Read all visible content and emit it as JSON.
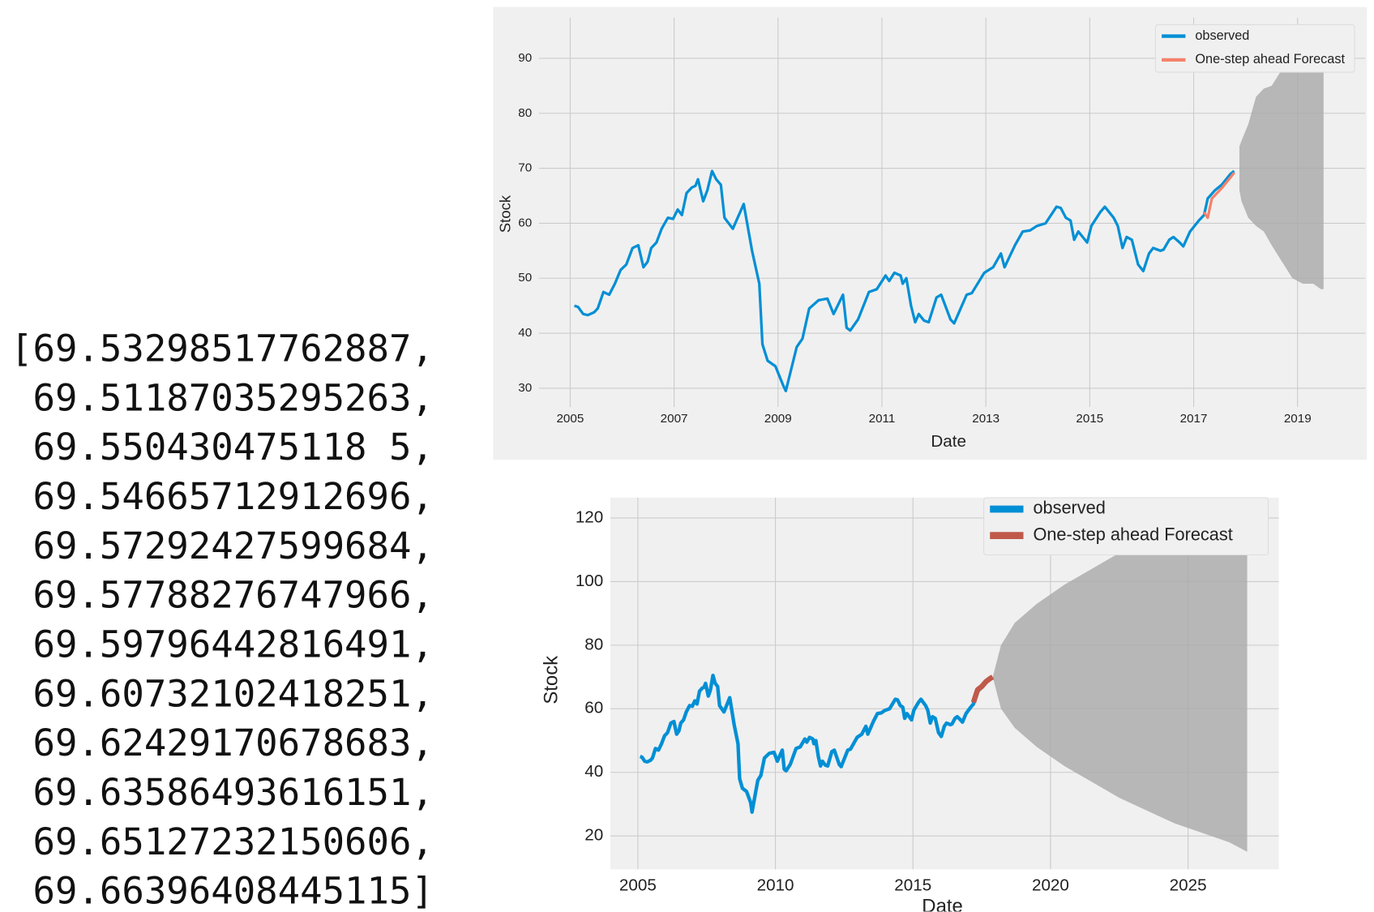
{
  "output_list": {
    "lines": [
      "[69.53298517762887,",
      " 69.51187035295263,",
      " 69.550430475118 5,",
      " 69.54665712912696,",
      " 69.57292427599684,",
      " 69.57788276747966,",
      " 69.59796442816491,",
      " 69.60732102418251,",
      " 69.62429170678683,",
      " 69.63586493616151,",
      " 69.65127232150606,",
      " 69.66396408445115]"
    ]
  },
  "chart_data": [
    {
      "type": "line",
      "x_label": "Date",
      "y_label": "Stock",
      "grid": true,
      "legend": "upper right",
      "xlim": [
        2004.4,
        2020.3
      ],
      "ylim": [
        26.6,
        97.4
      ],
      "xticks": [
        2005,
        2007,
        2009,
        2011,
        2013,
        2015,
        2017,
        2019
      ],
      "yticks": [
        30,
        40,
        50,
        60,
        70,
        80,
        90
      ],
      "series": [
        {
          "name": "observed",
          "color": "#008fd5",
          "x": [
            2005.08,
            2005.15,
            2005.25,
            2005.34,
            2005.46,
            2005.53,
            2005.64,
            2005.75,
            2005.86,
            2005.97,
            2006.08,
            2006.2,
            2006.31,
            2006.41,
            2006.49,
            2006.56,
            2006.66,
            2006.76,
            2006.88,
            2006.98,
            2007.07,
            2007.15,
            2007.24,
            2007.34,
            2007.41,
            2007.46,
            2007.56,
            2007.64,
            2007.73,
            2007.81,
            2007.9,
            2007.97,
            2008.13,
            2008.34,
            2008.5,
            2008.64,
            2008.7,
            2008.8,
            2008.95,
            2009.1,
            2009.15,
            2009.36,
            2009.47,
            2009.6,
            2009.78,
            2009.95,
            2010.07,
            2010.25,
            2010.32,
            2010.39,
            2010.54,
            2010.75,
            2010.9,
            2011.07,
            2011.14,
            2011.24,
            2011.36,
            2011.4,
            2011.47,
            2011.56,
            2011.64,
            2011.71,
            2011.81,
            2011.9,
            2012.05,
            2012.14,
            2012.32,
            2012.39,
            2012.63,
            2012.73,
            2012.97,
            2013.14,
            2013.29,
            2013.36,
            2013.56,
            2013.71,
            2013.85,
            2013.98,
            2014.15,
            2014.36,
            2014.44,
            2014.54,
            2014.63,
            2014.7,
            2014.78,
            2014.95,
            2015.03,
            2015.2,
            2015.29,
            2015.46,
            2015.54,
            2015.63,
            2015.71,
            2015.81,
            2015.93,
            2016.03,
            2016.14,
            2016.22,
            2016.36,
            2016.42,
            2016.53,
            2016.61,
            2016.73,
            2016.8,
            2016.93,
            2017.1,
            2017.2,
            2017.27,
            2017.41,
            2017.54,
            2017.71,
            2017.78
          ],
          "values": [
            45,
            44.8,
            43.5,
            43.3,
            43.8,
            44.5,
            47.5,
            47,
            49,
            51.5,
            52.5,
            55.5,
            56,
            52,
            53,
            55.5,
            56.5,
            59,
            61,
            60.8,
            62.5,
            61.5,
            65.5,
            66.5,
            66.8,
            68,
            64,
            66,
            69.5,
            68,
            67,
            61,
            59,
            63.5,
            55,
            49,
            38,
            35,
            34,
            30.5,
            29.5,
            37.5,
            39,
            44.5,
            46,
            46.3,
            43.5,
            47,
            41,
            40.5,
            42.5,
            47.5,
            48,
            50.5,
            49.5,
            51,
            50.5,
            49,
            50,
            45,
            42,
            43.5,
            42.3,
            42,
            46.5,
            47,
            42.5,
            41.8,
            47,
            47.3,
            51,
            52,
            54.5,
            52,
            56,
            58.5,
            58.7,
            59.5,
            60,
            63,
            62.8,
            61,
            60.5,
            57,
            58.5,
            56.5,
            59.5,
            62,
            63,
            61,
            59.5,
            55.5,
            57.5,
            57,
            52.5,
            51.3,
            54.5,
            55.5,
            55,
            55.2,
            57,
            57.5,
            56.5,
            55.8,
            58.5,
            60.5,
            61.5,
            64.5,
            66,
            67,
            69,
            69.5
          ]
        },
        {
          "name": "One-step ahead Forecast",
          "color": "#f4826b",
          "x": [
            2017.2,
            2017.27,
            2017.35,
            2017.45,
            2017.55,
            2017.68,
            2017.78
          ],
          "values": [
            62,
            61,
            64.5,
            65.5,
            66.5,
            68,
            69.2
          ]
        }
      ],
      "confidence_interval": {
        "color": "#a9a9a9",
        "x": [
          2017.88,
          2017.92,
          2018.05,
          2018.2,
          2018.35,
          2018.5,
          2018.7,
          2018.9,
          2019.1,
          2019.3,
          2019.45,
          2019.5
        ],
        "upper": [
          74,
          75,
          78,
          83,
          84.5,
          85,
          88,
          89,
          92,
          94.5,
          94.5,
          94.5
        ],
        "lower": [
          66,
          64,
          61,
          59.5,
          58.5,
          56,
          53,
          50,
          49,
          49,
          48,
          48
        ]
      }
    },
    {
      "type": "line",
      "x_label": "Date",
      "y_label": "Stock",
      "grid": true,
      "legend": "upper right",
      "xlim": [
        2004.0,
        2028.3
      ],
      "ylim": [
        9.5,
        126.4
      ],
      "xticks": [
        2005,
        2010,
        2015,
        2020,
        2025
      ],
      "yticks": [
        20,
        40,
        60,
        80,
        100,
        120
      ],
      "series": [
        {
          "name": "observed",
          "color": "#008fd5",
          "x": [
            2005.08,
            2005.15,
            2005.25,
            2005.34,
            2005.46,
            2005.53,
            2005.64,
            2005.75,
            2005.86,
            2005.97,
            2006.08,
            2006.2,
            2006.31,
            2006.41,
            2006.49,
            2006.56,
            2006.66,
            2006.76,
            2006.88,
            2006.98,
            2007.07,
            2007.15,
            2007.24,
            2007.34,
            2007.41,
            2007.46,
            2007.56,
            2007.64,
            2007.73,
            2007.81,
            2007.9,
            2007.97,
            2008.13,
            2008.34,
            2008.5,
            2008.64,
            2008.7,
            2008.8,
            2008.95,
            2009.1,
            2009.15,
            2009.36,
            2009.47,
            2009.6,
            2009.78,
            2009.95,
            2010.07,
            2010.25,
            2010.32,
            2010.39,
            2010.54,
            2010.75,
            2010.9,
            2011.07,
            2011.14,
            2011.24,
            2011.36,
            2011.4,
            2011.47,
            2011.56,
            2011.64,
            2011.71,
            2011.81,
            2011.9,
            2012.05,
            2012.14,
            2012.32,
            2012.39,
            2012.63,
            2012.73,
            2012.97,
            2013.14,
            2013.29,
            2013.36,
            2013.56,
            2013.71,
            2013.85,
            2013.98,
            2014.15,
            2014.36,
            2014.44,
            2014.54,
            2014.63,
            2014.7,
            2014.78,
            2014.95,
            2015.03,
            2015.2,
            2015.29,
            2015.46,
            2015.54,
            2015.63,
            2015.71,
            2015.81,
            2015.93,
            2016.03,
            2016.14,
            2016.22,
            2016.36,
            2016.42,
            2016.53,
            2016.61,
            2016.73,
            2016.8,
            2016.93,
            2017.1,
            2017.2,
            2017.27,
            2017.41,
            2017.54,
            2017.71,
            2017.78
          ],
          "values": [
            45,
            44.8,
            43.5,
            43.3,
            43.8,
            44.5,
            47.5,
            47,
            49,
            51.5,
            52.5,
            55.5,
            56,
            52,
            53,
            55.5,
            56.5,
            59,
            61,
            60.8,
            62.5,
            61.5,
            65.5,
            66.5,
            66.8,
            68,
            64,
            66,
            70.5,
            68,
            67,
            61,
            59,
            63.5,
            55,
            49,
            38,
            35,
            34,
            30.5,
            27.5,
            37.5,
            39,
            44.5,
            46,
            46.3,
            43.5,
            47,
            41,
            40.5,
            42.5,
            47.5,
            48,
            50.5,
            49.5,
            51,
            50.5,
            49,
            50,
            45,
            42,
            43.5,
            42.3,
            42,
            46.5,
            47,
            42.5,
            41.8,
            47,
            47.3,
            51,
            52,
            54.5,
            52,
            56,
            58.5,
            58.7,
            59.5,
            60,
            63,
            62.8,
            61,
            60.5,
            57,
            58.5,
            56.5,
            59.5,
            62,
            63,
            61,
            59.5,
            55.5,
            57.5,
            57,
            52.5,
            51.3,
            54.5,
            55.5,
            55,
            55.2,
            57,
            57.5,
            56.5,
            55.8,
            58.5,
            60.5,
            61.5,
            64.5,
            66,
            67,
            69,
            69.5
          ]
        },
        {
          "name": "One-step ahead Forecast",
          "color": "#c0594a",
          "x": [
            2017.2,
            2017.35,
            2017.5,
            2017.65,
            2017.8,
            2017.9
          ],
          "values": [
            62,
            66,
            67,
            68.5,
            69.5,
            70
          ]
        }
      ],
      "confidence_interval": {
        "color": "#a9a9a9",
        "x": [
          2017.9,
          2018.2,
          2018.7,
          2019.5,
          2020.5,
          2021.5,
          2022.5,
          2023.5,
          2024.5,
          2025.5,
          2026.5,
          2027.15
        ],
        "upper": [
          70,
          80,
          87,
          93,
          99,
          104,
          109,
          113,
          117,
          120,
          123,
          124
        ],
        "lower": [
          70,
          60,
          54,
          48,
          42,
          37,
          32,
          28,
          24,
          21,
          18,
          15
        ]
      }
    }
  ]
}
